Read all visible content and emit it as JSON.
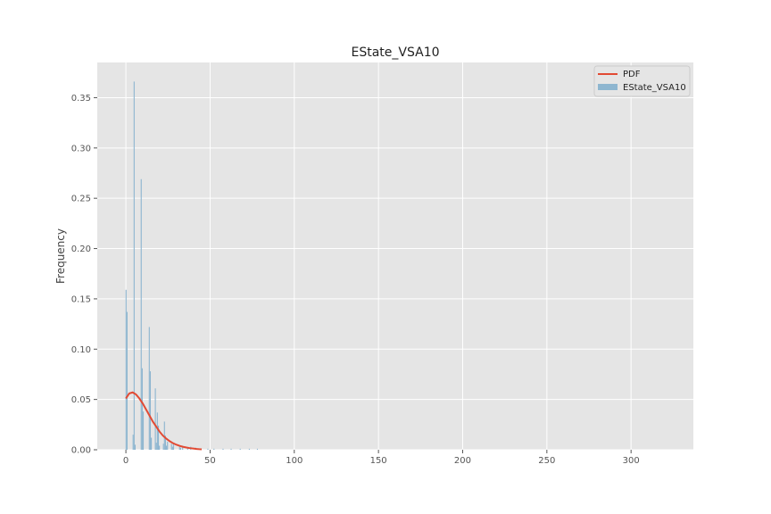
{
  "chart_data": {
    "type": "bar",
    "title": "EState_VSA10",
    "xlabel": "",
    "ylabel": "Frequency",
    "xlim": [
      -17,
      337
    ],
    "ylim": [
      0,
      0.385
    ],
    "x_ticks": [
      0,
      50,
      100,
      150,
      200,
      250,
      300
    ],
    "y_ticks": [
      0.0,
      0.05,
      0.1,
      0.15,
      0.2,
      0.25,
      0.3,
      0.35
    ],
    "x_tick_labels": [
      "0",
      "50",
      "100",
      "150",
      "200",
      "250",
      "300"
    ],
    "y_tick_labels": [
      "0.00",
      "0.05",
      "0.10",
      "0.15",
      "0.20",
      "0.25",
      "0.30",
      "0.35"
    ],
    "grid": true,
    "legend_position": "top-right",
    "colors": {
      "background": "#e5e5e5",
      "grid": "#ffffff",
      "histogram": "#8eb6d0",
      "pdf": "#e24a33",
      "legend_bg": "#e5e5e5",
      "legend_border": "#cccccc"
    },
    "series": [
      {
        "name": "EState_VSA10",
        "kind": "histogram",
        "bin_width": 0.6,
        "x": [
          0.1,
          0.7,
          4.3,
          4.9,
          5.5,
          9.1,
          9.7,
          10.3,
          13.9,
          14.5,
          15.1,
          17.5,
          18.1,
          18.7,
          19.3,
          19.9,
          22.3,
          22.9,
          23.5,
          24.1,
          24.7,
          27.1,
          27.7,
          28.3,
          31.9,
          32.5,
          33.7,
          36.7,
          38.5,
          41.5,
          43.3,
          48.7,
          52.3,
          57.7,
          62.5,
          67.9,
          73.3,
          78.1
        ],
        "values": [
          0.159,
          0.137,
          0.015,
          0.366,
          0.005,
          0.269,
          0.081,
          0.038,
          0.122,
          0.078,
          0.012,
          0.061,
          0.007,
          0.037,
          0.024,
          0.004,
          0.006,
          0.028,
          0.014,
          0.004,
          0.008,
          0.006,
          0.003,
          0.007,
          0.003,
          0.002,
          0.004,
          0.002,
          0.003,
          0.002,
          0.001,
          0.001,
          0.001,
          0.001,
          0.001,
          0.001,
          0.001,
          0.001
        ]
      },
      {
        "name": "PDF",
        "kind": "line",
        "x": [
          0,
          2,
          4,
          6,
          8,
          10,
          12,
          14,
          16,
          18,
          20,
          22,
          24,
          26,
          28,
          30,
          32,
          34,
          36,
          38,
          40,
          42,
          44,
          45
        ],
        "values": [
          0.051,
          0.056,
          0.057,
          0.055,
          0.051,
          0.046,
          0.04,
          0.034,
          0.028,
          0.023,
          0.018,
          0.014,
          0.011,
          0.0085,
          0.0065,
          0.005,
          0.0038,
          0.0029,
          0.0022,
          0.0016,
          0.0012,
          0.0008,
          0.0005,
          0.0004
        ]
      }
    ]
  }
}
